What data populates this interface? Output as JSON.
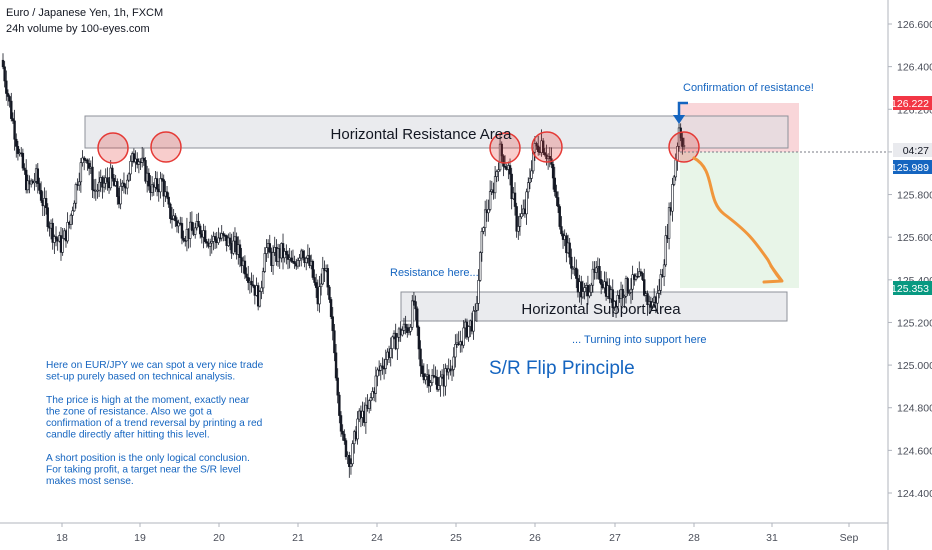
{
  "header": {
    "symbol_title": "Euro / Japanese Yen, 1h, FXCM",
    "volume_label": "24h volume by 100-eyes.com"
  },
  "annotations": {
    "resistance_area": "Horizontal Resistance Area",
    "support_area": "Horizontal Support Area",
    "confirmation": "Confirmation of resistance!",
    "resistance_here": "Resistance here...",
    "turning_support": "... Turning into support here",
    "flip_principle": "S/R Flip Principle",
    "note_lines": [
      "Here on EUR/JPY we can spot a very nice trade",
      "set-up purely based on technical analysis.",
      "",
      "The price is high at the moment, exactly near",
      "the zone of resistance. Also we got a",
      "confirmation of a trend reversal by printing a red",
      "candle directly after hitting this level.",
      "",
      "A short position is the only logical conclusion.",
      "For taking profit, a target near the S/R level",
      "makes most sense."
    ]
  },
  "price_tags": {
    "stop": "126.222",
    "timer": "04:27",
    "current": "125.989",
    "target": "125.353"
  },
  "colors": {
    "accent_blue": "#1565c0",
    "stop_red": "#f23645",
    "target_green": "#089981",
    "arrow_orange": "#f0963c",
    "circle_red": "#e53935"
  },
  "chart_data": {
    "type": "candlestick",
    "symbol": "EURJPY",
    "timeframe": "1h",
    "ylim": [
      124.3,
      126.7
    ],
    "y_ticks": [
      "126.600",
      "126.400",
      "126.200",
      "126.000",
      "125.800",
      "125.600",
      "125.400",
      "125.200",
      "125.000",
      "124.800",
      "124.600",
      "124.400"
    ],
    "x_ticks": [
      "18",
      "19",
      "20",
      "21",
      "24",
      "25",
      "26",
      "27",
      "28",
      "31",
      "Sep"
    ],
    "resistance_zone": [
      126.0,
      126.17
    ],
    "support_zone": [
      125.22,
      125.32
    ],
    "position": {
      "entry": 126.03,
      "stop": 126.222,
      "target": 125.353
    },
    "close_path": [
      [
        0,
        126.4
      ],
      [
        5,
        126.18
      ],
      [
        10,
        125.98
      ],
      [
        15,
        125.83
      ],
      [
        20,
        125.88
      ],
      [
        25,
        125.74
      ],
      [
        30,
        125.62
      ],
      [
        35,
        125.56
      ],
      [
        40,
        125.66
      ],
      [
        45,
        125.88
      ],
      [
        50,
        126.0
      ],
      [
        55,
        125.82
      ],
      [
        60,
        125.84
      ],
      [
        65,
        125.88
      ],
      [
        70,
        125.78
      ],
      [
        80,
        126.0
      ],
      [
        85,
        125.92
      ],
      [
        90,
        125.82
      ],
      [
        96,
        125.86
      ],
      [
        100,
        125.72
      ],
      [
        110,
        125.62
      ],
      [
        120,
        125.64
      ],
      [
        125,
        125.58
      ],
      [
        130,
        125.6
      ],
      [
        140,
        125.56
      ],
      [
        150,
        125.4
      ],
      [
        155,
        125.3
      ],
      [
        158,
        125.56
      ],
      [
        162,
        125.5
      ],
      [
        168,
        125.53
      ],
      [
        175,
        125.46
      ],
      [
        180,
        125.55
      ],
      [
        186,
        125.45
      ],
      [
        190,
        125.3
      ],
      [
        194,
        125.48
      ],
      [
        200,
        125.06
      ],
      [
        205,
        124.64
      ],
      [
        210,
        124.55
      ],
      [
        214,
        124.74
      ],
      [
        220,
        124.78
      ],
      [
        226,
        124.96
      ],
      [
        234,
        125.08
      ],
      [
        240,
        125.16
      ],
      [
        245,
        125.18
      ],
      [
        248,
        125.3
      ],
      [
        252,
        124.98
      ],
      [
        258,
        124.94
      ],
      [
        265,
        124.92
      ],
      [
        272,
        125.04
      ],
      [
        278,
        125.15
      ],
      [
        285,
        125.22
      ],
      [
        290,
        125.68
      ],
      [
        295,
        125.8
      ],
      [
        300,
        126.0
      ],
      [
        305,
        125.92
      ],
      [
        310,
        125.66
      ],
      [
        315,
        125.72
      ],
      [
        320,
        126.0
      ],
      [
        325,
        126.05
      ],
      [
        330,
        125.96
      ],
      [
        335,
        125.72
      ],
      [
        340,
        125.56
      ],
      [
        345,
        125.43
      ],
      [
        350,
        125.32
      ],
      [
        355,
        125.4
      ],
      [
        360,
        125.43
      ],
      [
        368,
        125.3
      ],
      [
        375,
        125.36
      ],
      [
        380,
        125.38
      ],
      [
        385,
        125.4
      ],
      [
        390,
        125.28
      ],
      [
        395,
        125.32
      ],
      [
        398,
        125.45
      ],
      [
        402,
        125.7
      ],
      [
        405,
        125.9
      ],
      [
        408,
        126.12
      ],
      [
        411,
        126.03
      ]
    ]
  }
}
